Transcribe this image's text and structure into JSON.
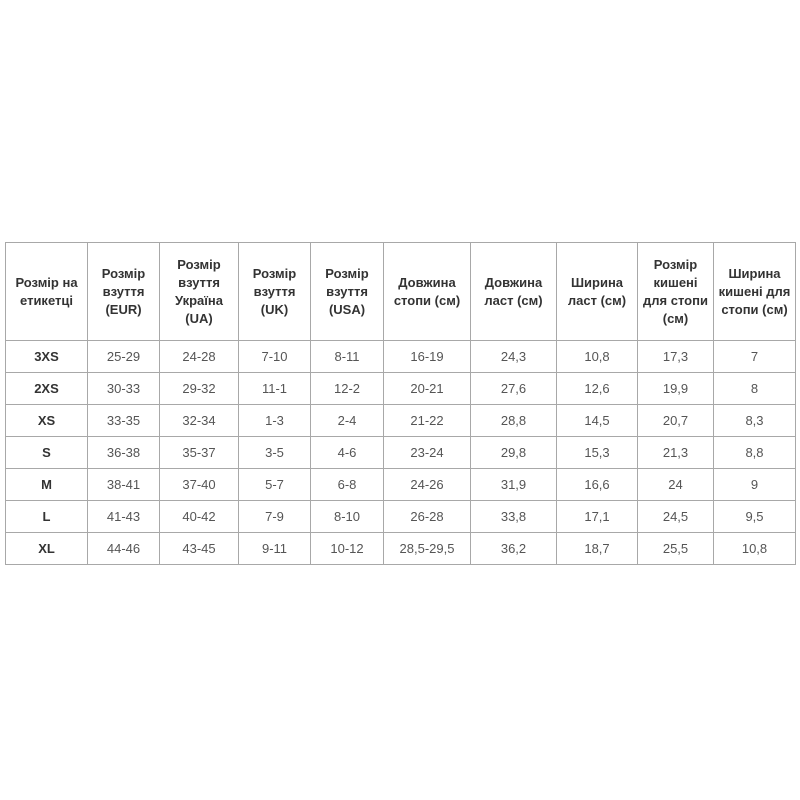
{
  "table": {
    "headers": [
      "Розмір на етикетці",
      "Розмір взуття (EUR)",
      "Розмір взуття Україна (UA)",
      "Розмір взуття (UK)",
      "Розмір взуття (USA)",
      "Довжина стопи (см)",
      "Довжина ласт (см)",
      "Ширина ласт (см)",
      "Розмір кишені для стопи (см)",
      "Ширина кишені для стопи (см)"
    ],
    "rows": [
      [
        "3XS",
        "25-29",
        "24-28",
        "7-10",
        "8-11",
        "16-19",
        "24,3",
        "10,8",
        "17,3",
        "7"
      ],
      [
        "2XS",
        "30-33",
        "29-32",
        "11-1",
        "12-2",
        "20-21",
        "27,6",
        "12,6",
        "19,9",
        "8"
      ],
      [
        "XS",
        "33-35",
        "32-34",
        "1-3",
        "2-4",
        "21-22",
        "28,8",
        "14,5",
        "20,7",
        "8,3"
      ],
      [
        "S",
        "36-38",
        "35-37",
        "3-5",
        "4-6",
        "23-24",
        "29,8",
        "15,3",
        "21,3",
        "8,8"
      ],
      [
        "M",
        "38-41",
        "37-40",
        "5-7",
        "6-8",
        "24-26",
        "31,9",
        "16,6",
        "24",
        "9"
      ],
      [
        "L",
        "41-43",
        "40-42",
        "7-9",
        "8-10",
        "26-28",
        "33,8",
        "17,1",
        "24,5",
        "9,5"
      ],
      [
        "XL",
        "44-46",
        "43-45",
        "9-11",
        "10-12",
        "28,5-29,5",
        "36,2",
        "18,7",
        "25,5",
        "10,8"
      ]
    ]
  }
}
